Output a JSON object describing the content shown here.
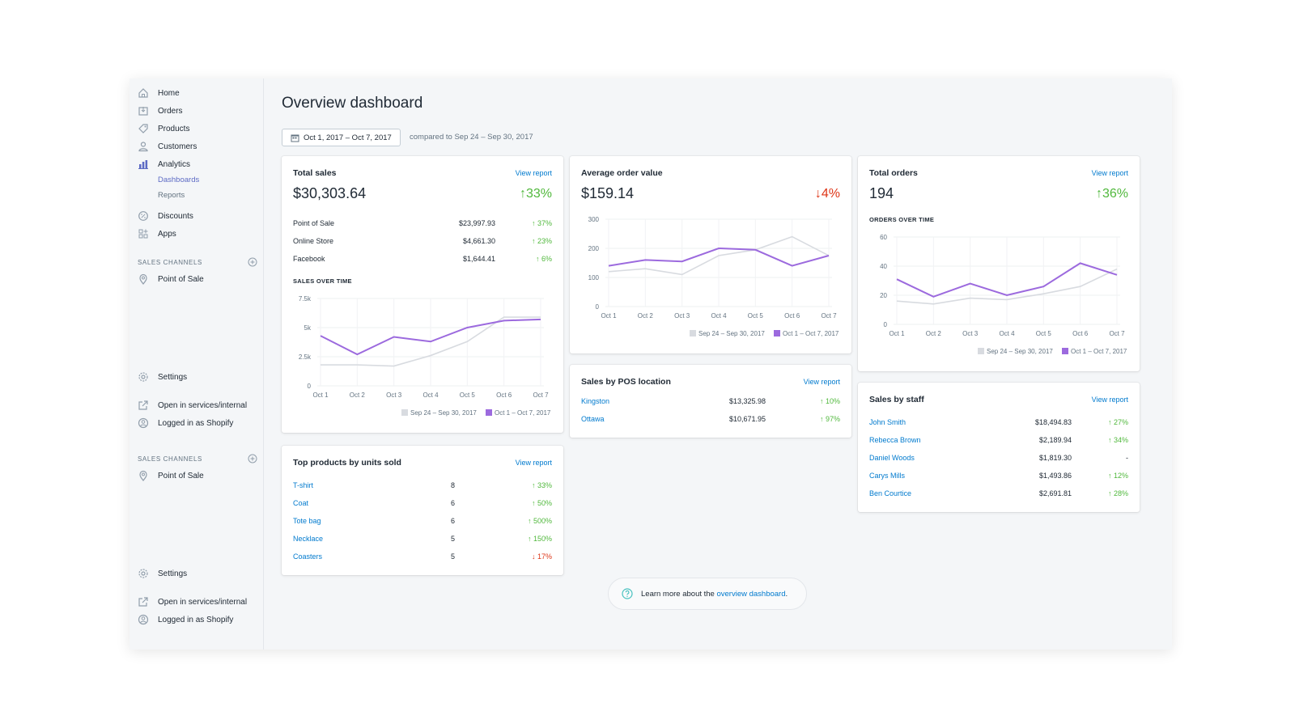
{
  "sidebar": {
    "items": [
      {
        "label": "Home",
        "icon": "home-icon"
      },
      {
        "label": "Orders",
        "icon": "orders-icon"
      },
      {
        "label": "Products",
        "icon": "tag-icon"
      },
      {
        "label": "Customers",
        "icon": "person-icon"
      },
      {
        "label": "Analytics",
        "icon": "bar-chart-icon"
      }
    ],
    "analytics_sub": [
      "Dashboards",
      "Reports"
    ],
    "items2": [
      {
        "label": "Discounts",
        "icon": "discount-icon"
      },
      {
        "label": "Apps",
        "icon": "apps-icon"
      }
    ],
    "sales_channels_label": "SALES CHANNELS",
    "point_of_sale": "Point of Sale",
    "settings": "Settings",
    "open_in": "Open in services/internal",
    "logged_in": "Logged in as Shopify"
  },
  "page": {
    "title": "Overview dashboard",
    "date_range": "Oct 1, 2017 – Oct 7, 2017",
    "compared_to": "compared to Sep 24 – Sep 30, 2017",
    "learn_prefix": "Learn more about the ",
    "learn_link": "overview dashboard",
    "learn_suffix": "."
  },
  "common": {
    "view_report": "View report",
    "legend_prev": "Sep 24 – Sep 30, 2017",
    "legend_curr": "Oct 1 – Oct 7, 2017",
    "color_prev": "#d8dbe0",
    "color_curr": "#9c6ade"
  },
  "total_sales": {
    "title": "Total sales",
    "value": "$30,303.64",
    "delta": "↑33%",
    "rows": [
      {
        "name": "Point of Sale",
        "amount": "$23,997.93",
        "delta": "↑ 37%"
      },
      {
        "name": "Online Store",
        "amount": "$4,661.30",
        "delta": "↑ 23%"
      },
      {
        "name": "Facebook",
        "amount": "$1,644.41",
        "delta": "↑ 6%"
      }
    ],
    "chart_label": "SALES OVER TIME"
  },
  "avg_order": {
    "title": "Average order value",
    "value": "$159.14",
    "delta": "↓4%"
  },
  "total_orders": {
    "title": "Total orders",
    "value": "194",
    "delta": "↑36%",
    "chart_label": "ORDERS OVER TIME"
  },
  "pos_location": {
    "title": "Sales by POS location",
    "rows": [
      {
        "name": "Kingston",
        "amount": "$13,325.98",
        "delta": "↑ 10%"
      },
      {
        "name": "Ottawa",
        "amount": "$10,671.95",
        "delta": "↑ 97%"
      }
    ]
  },
  "top_products": {
    "title": "Top products by units sold",
    "rows": [
      {
        "name": "T-shirt",
        "units": "8",
        "delta": "↑ 33%",
        "dir": "up"
      },
      {
        "name": "Coat",
        "units": "6",
        "delta": "↑ 50%",
        "dir": "up"
      },
      {
        "name": "Tote bag",
        "units": "6",
        "delta": "↑ 500%",
        "dir": "up"
      },
      {
        "name": "Necklace",
        "units": "5",
        "delta": "↑ 150%",
        "dir": "up"
      },
      {
        "name": "Coasters",
        "units": "5",
        "delta": "↓ 17%",
        "dir": "down"
      }
    ]
  },
  "sales_staff": {
    "title": "Sales by staff",
    "rows": [
      {
        "name": "John Smith",
        "amount": "$18,494.83",
        "delta": "↑ 27%",
        "dir": "up"
      },
      {
        "name": "Rebecca Brown",
        "amount": "$2,189.94",
        "delta": "↑ 34%",
        "dir": "up"
      },
      {
        "name": "Daniel Woods",
        "amount": "$1,819.30",
        "delta": "-",
        "dir": "none"
      },
      {
        "name": "Carys Mills",
        "amount": "$1,493.86",
        "delta": "↑ 12%",
        "dir": "up"
      },
      {
        "name": "Ben Courtice",
        "amount": "$2,691.81",
        "delta": "↑ 28%",
        "dir": "up"
      }
    ]
  },
  "chart_data": [
    {
      "type": "line",
      "title": "SALES OVER TIME",
      "x": [
        "Oct 1",
        "Oct 2",
        "Oct 3",
        "Oct 4",
        "Oct 5",
        "Oct 6",
        "Oct 7"
      ],
      "yticks": [
        "0",
        "2.5k",
        "5k",
        "7.5k"
      ],
      "ylim": [
        0,
        7500
      ],
      "series": [
        {
          "name": "Sep 24 – Sep 30, 2017",
          "values": [
            1800,
            1800,
            1700,
            2600,
            3800,
            5900,
            5900
          ]
        },
        {
          "name": "Oct 1 – Oct 7, 2017",
          "values": [
            4300,
            2700,
            4200,
            3800,
            5000,
            5600,
            5700
          ]
        }
      ]
    },
    {
      "type": "line",
      "title": "Average order value",
      "x": [
        "Oct 1",
        "Oct 2",
        "Oct 3",
        "Oct 4",
        "Oct 5",
        "Oct 6",
        "Oct 7"
      ],
      "yticks": [
        "0",
        "100",
        "200",
        "300"
      ],
      "ylim": [
        0,
        300
      ],
      "series": [
        {
          "name": "Sep 24 – Sep 30, 2017",
          "values": [
            120,
            130,
            110,
            175,
            195,
            240,
            175
          ]
        },
        {
          "name": "Oct 1 – Oct 7, 2017",
          "values": [
            140,
            160,
            155,
            200,
            195,
            140,
            175
          ]
        }
      ]
    },
    {
      "type": "line",
      "title": "ORDERS OVER TIME",
      "x": [
        "Oct 1",
        "Oct 2",
        "Oct 3",
        "Oct 4",
        "Oct 5",
        "Oct 6",
        "Oct 7"
      ],
      "yticks": [
        "0",
        "20",
        "40",
        "60"
      ],
      "ylim": [
        0,
        60
      ],
      "series": [
        {
          "name": "Sep 24 – Sep 30, 2017",
          "values": [
            16,
            14,
            18,
            17,
            21,
            26,
            38
          ]
        },
        {
          "name": "Oct 1 – Oct 7, 2017",
          "values": [
            31,
            19,
            28,
            20,
            26,
            42,
            34
          ]
        }
      ]
    }
  ]
}
